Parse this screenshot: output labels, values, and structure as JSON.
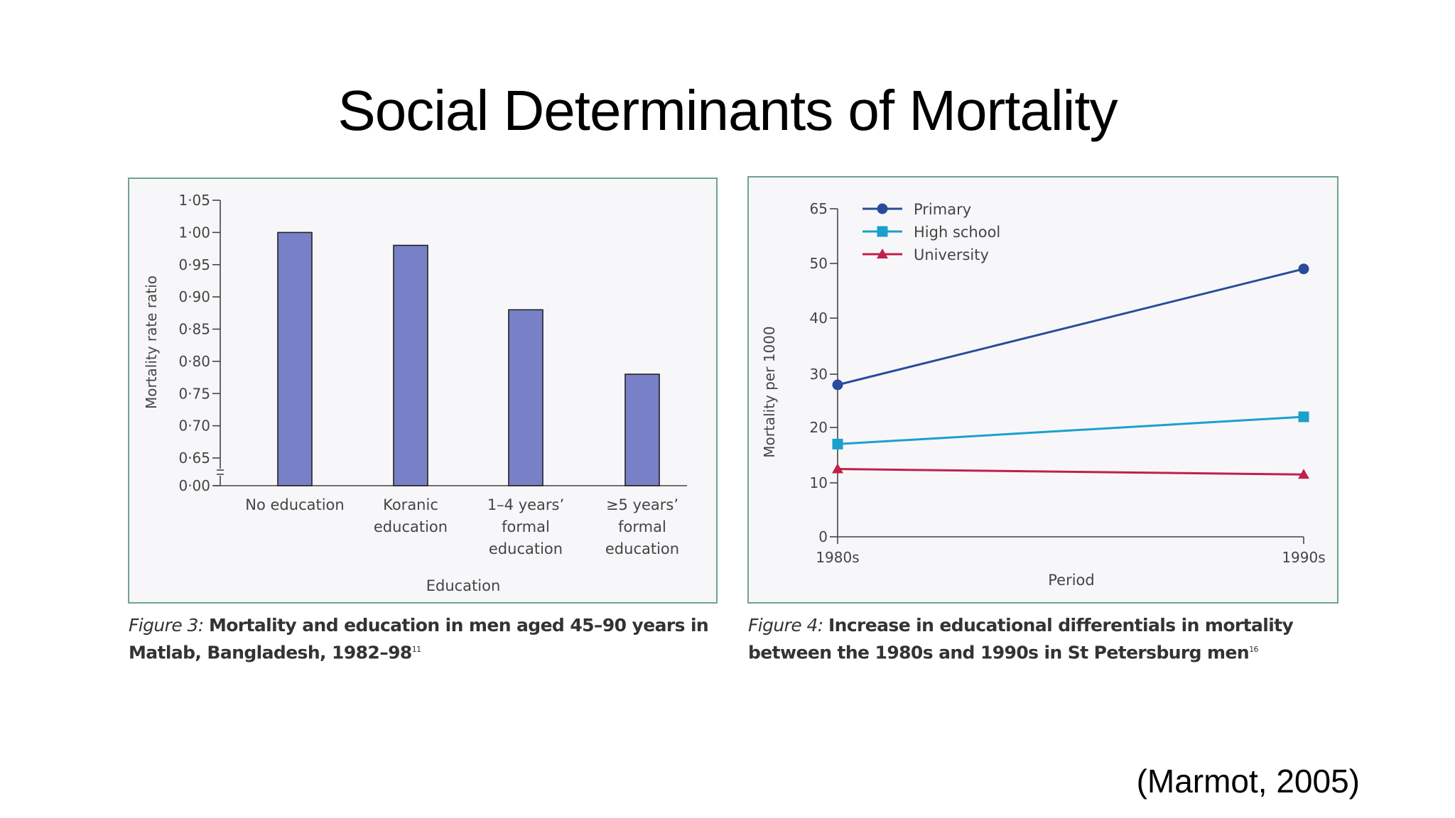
{
  "slide": {
    "title": "Social Determinants of Mortality",
    "citation": "(Marmot, 2005)"
  },
  "captions": {
    "left": {
      "figure_label": "Figure 3:",
      "text": "Mortality and education in men aged 45–90 years in Matlab, Bangladesh, 1982–98",
      "ref": "11"
    },
    "right": {
      "figure_label": "Figure 4:",
      "text": "Increase in educational differentials in mortality between the 1980s and 1990s in St Petersburg men",
      "ref": "16"
    }
  },
  "chart_data": [
    {
      "type": "bar",
      "title": "",
      "xlabel": "Education",
      "ylabel": "Mortality rate ratio",
      "categories": [
        [
          "No education"
        ],
        [
          "Koranic",
          "education"
        ],
        [
          "1–4 years’",
          "formal",
          "education"
        ],
        [
          "≥5 years’",
          "formal",
          "education"
        ]
      ],
      "values": [
        1.0,
        0.98,
        0.88,
        0.78
      ],
      "yticks": [
        "0·00",
        "0·65",
        "0·70",
        "0·75",
        "0·80",
        "0·85",
        "0·90",
        "0·95",
        "1·00",
        "1·05"
      ],
      "ylim": [
        0.65,
        1.05
      ],
      "axis_break": true,
      "bar_color": "#7880c8",
      "grid": false
    },
    {
      "type": "line",
      "title": "",
      "xlabel": "Period",
      "ylabel": "Mortality per 1000",
      "x": [
        "1980s",
        "1990s"
      ],
      "yticks": [
        0,
        10,
        20,
        30,
        40,
        50,
        65
      ],
      "ylim": [
        0,
        65
      ],
      "y_scale": "non-uniform tick spacing",
      "grid": false,
      "legend": "top-left",
      "series": [
        {
          "name": "Primary",
          "values": [
            28,
            49
          ],
          "color": "#2a4b9b",
          "marker": "circle"
        },
        {
          "name": "High school",
          "values": [
            17,
            22
          ],
          "color": "#1aa0cc",
          "marker": "square"
        },
        {
          "name": "University",
          "values": [
            12.5,
            11.5
          ],
          "color": "#c0204a",
          "marker": "triangle"
        }
      ]
    }
  ]
}
